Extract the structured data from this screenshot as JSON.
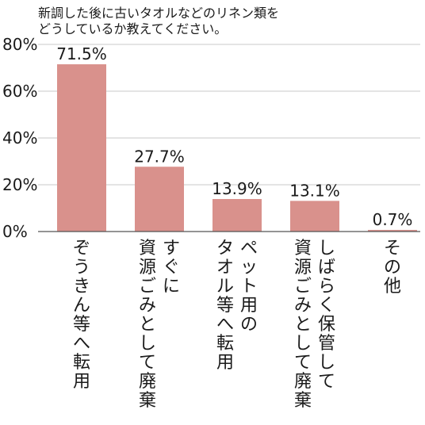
{
  "chart_data": {
    "type": "bar",
    "title": "新調した後に古いタオルなどのリネン類をどうしているか教えてください。",
    "title_lines": [
      "新調した後に古いタオルなどのリネン類を",
      "どうしているか教えてください。"
    ],
    "categories": [
      "ぞうきん等へ転用",
      "すぐに資源ごみとして廃棄",
      "ペット用のタオル等へ転用",
      "しばらく保管して資源ごみとして廃棄",
      "その他"
    ],
    "category_columns": [
      [
        "ぞうきん等へ転用"
      ],
      [
        "すぐに",
        "資源ごみとして廃棄"
      ],
      [
        "ペット用の",
        "タオル等へ転用"
      ],
      [
        "しばらく保管して",
        "資源ごみとして廃棄"
      ],
      [
        "その他"
      ]
    ],
    "values": [
      71.5,
      27.7,
      13.9,
      13.1,
      0.7
    ],
    "data_labels": [
      "71.5%",
      "27.7%",
      "13.9%",
      "13.1%",
      "0.7%"
    ],
    "y_ticks": [
      0,
      20,
      40,
      60,
      80
    ],
    "y_tick_labels": [
      "0%",
      "20%",
      "40%",
      "60%",
      "80%"
    ],
    "ylim": [
      0,
      80
    ],
    "xlabel": "",
    "ylabel": "",
    "grid": true,
    "bar_color": "#d9918c",
    "grid_color": "#c8c8c8",
    "axis_color": "#555555",
    "text_color": "#1a1a1a"
  }
}
